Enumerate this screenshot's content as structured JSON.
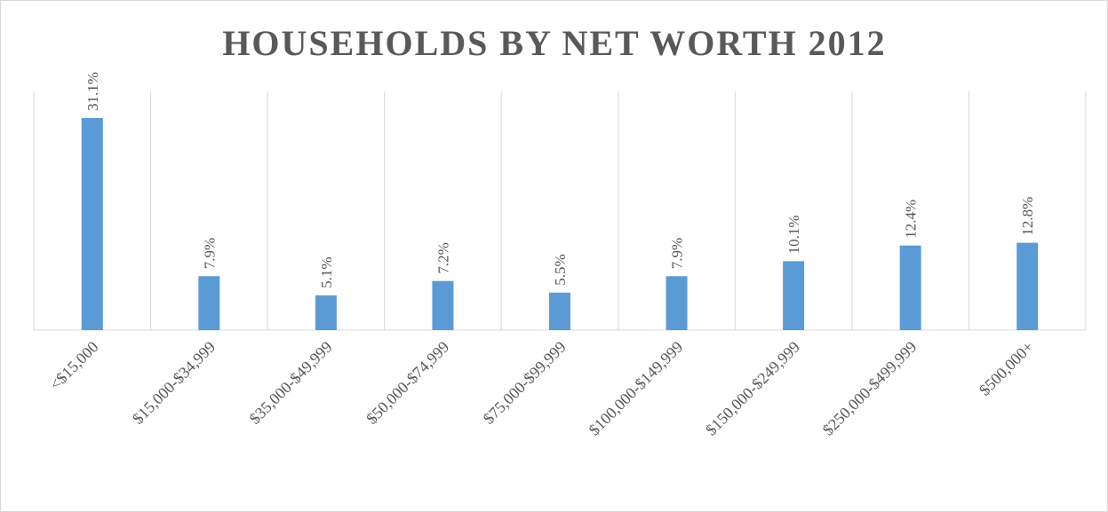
{
  "chart_data": {
    "type": "bar",
    "title": "HOUSEHOLDS BY NET WORTH 2012",
    "categories": [
      "<$15,000",
      "$15,000-$34,999",
      "$35,000-$49,999",
      "$50,000-$74,999",
      "$75,000-$99,999",
      "$100,000-$149,999",
      "$150,000-$249,999",
      "$250,000-$499,999",
      "$500,000+"
    ],
    "values": [
      31.1,
      7.9,
      5.1,
      7.2,
      5.5,
      7.9,
      10.1,
      12.4,
      12.8
    ],
    "value_labels": [
      "31.1%",
      "7.9%",
      "5.1%",
      "7.2%",
      "5.5%",
      "7.9%",
      "10.1%",
      "12.4%",
      "12.8%"
    ],
    "color": "#5b9bd5",
    "ylim": [
      0,
      35
    ]
  }
}
